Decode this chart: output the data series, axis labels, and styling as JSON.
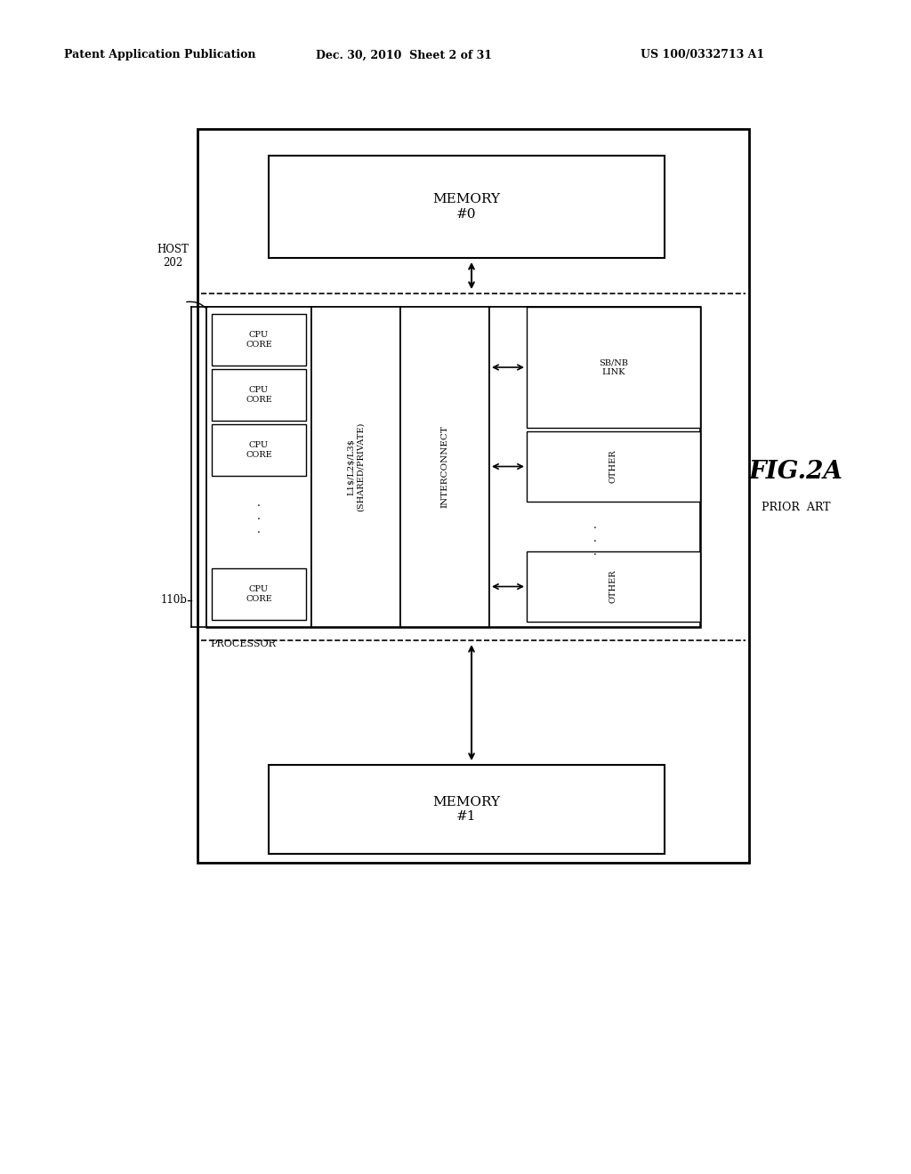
{
  "bg_color": "#ffffff",
  "header_left": "Patent Application Publication",
  "header_mid": "Dec. 30, 2010  Sheet 2 of 31",
  "header_right": "US 100/0332713 A1",
  "fig_label": "FIG.2A",
  "fig_sublabel": "PRIOR ART"
}
